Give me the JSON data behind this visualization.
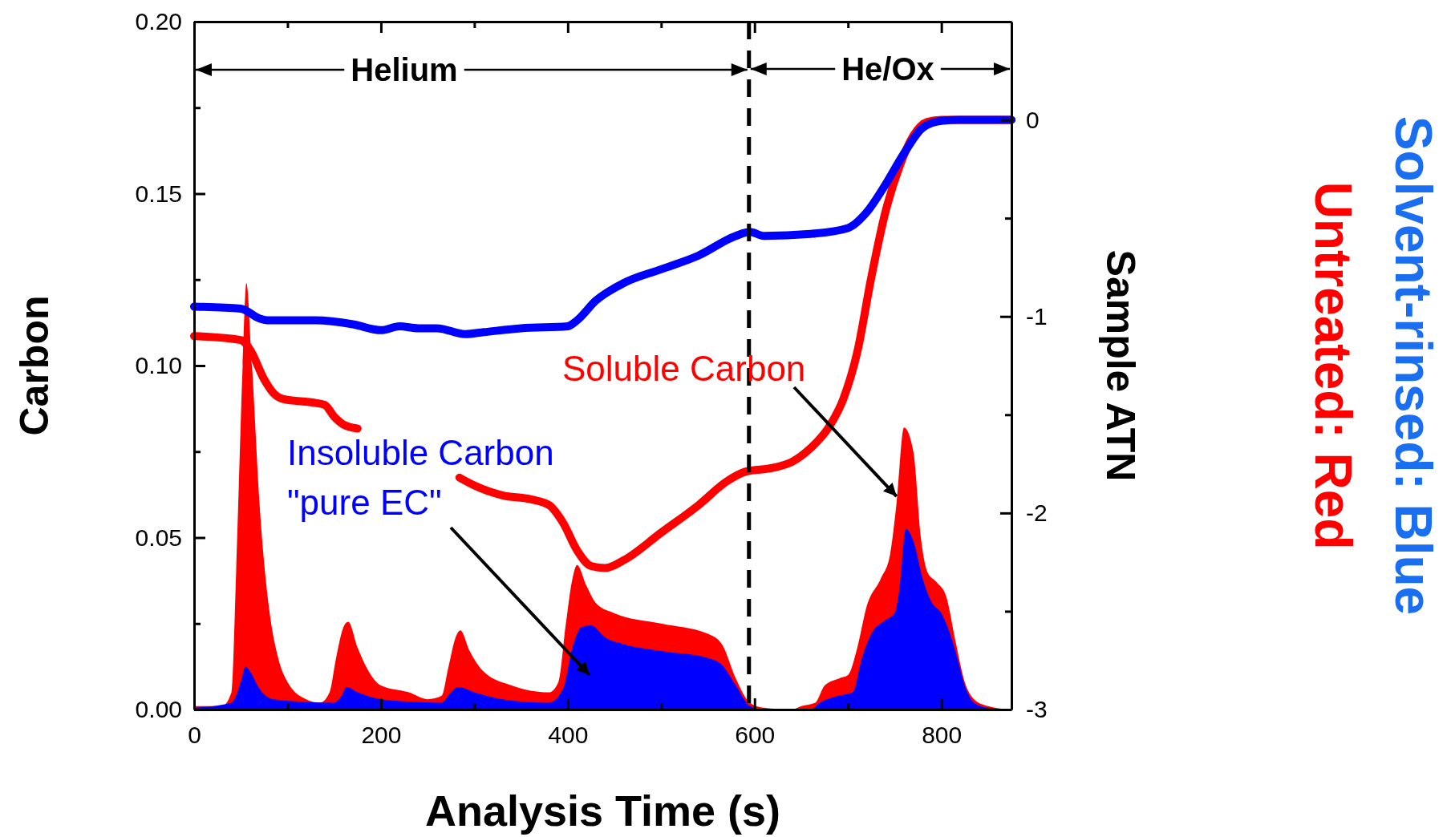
{
  "chart_data": {
    "type": "area",
    "xlabel": "Analysis Time (s)",
    "ylabel": "Carbon",
    "y2label": "Sample ATN",
    "xlim": [
      0,
      875
    ],
    "xticks": [
      0,
      {
        "value": 100,
        "label": null
      },
      200,
      {
        "value": 300,
        "label": null
      },
      400,
      {
        "value": 500,
        "label": null
      },
      600,
      {
        "value": 700,
        "label": null
      },
      800
    ],
    "ylim": [
      0,
      0.2
    ],
    "yticks": [
      {
        "value": 0,
        "label": "0.00"
      },
      {
        "value": 0.025,
        "label": null
      },
      {
        "value": 0.05,
        "label": "0.05"
      },
      {
        "value": 0.075,
        "label": null
      },
      {
        "value": 0.1,
        "label": "0.10"
      },
      {
        "value": 0.125,
        "label": null
      },
      {
        "value": 0.15,
        "label": "0.15"
      },
      {
        "value": 0.175,
        "label": null
      },
      {
        "value": 0.2,
        "label": "0.20"
      }
    ],
    "y2lim": [
      -3,
      0.5
    ],
    "y2ticks": [
      -3,
      {
        "value": -2.5,
        "label": null
      },
      -2,
      {
        "value": -1.5,
        "label": null
      },
      -1,
      {
        "value": -0.5,
        "label": null
      },
      0
    ],
    "ref_lines": [
      {
        "axis": "x",
        "value": 594,
        "line_style": "dashed",
        "color": "#000000"
      }
    ],
    "series": [
      {
        "color": "#ff0000",
        "x": [
          0,
          30,
          40,
          45,
          52,
          56,
          62,
          70,
          80,
          90,
          100,
          120,
          135,
          145,
          152,
          160,
          165,
          175,
          185,
          200,
          230,
          250,
          265,
          272,
          280,
          285,
          295,
          310,
          340,
          380,
          390,
          398,
          405,
          410,
          420,
          430,
          450,
          500,
          550,
          565,
          580,
          595,
          610,
          640,
          650,
          665,
          675,
          690,
          700,
          710,
          720,
          735,
          745,
          752,
          760,
          770,
          778,
          785,
          795,
          805,
          815,
          825,
          835,
          850,
          875
        ],
        "values": [
          0.001,
          0.001,
          0.005,
          0.04,
          0.1,
          0.124,
          0.1,
          0.06,
          0.03,
          0.015,
          0.008,
          0.003,
          0.002,
          0.005,
          0.015,
          0.024,
          0.0255,
          0.018,
          0.012,
          0.007,
          0.005,
          0.003,
          0.004,
          0.012,
          0.021,
          0.023,
          0.017,
          0.011,
          0.007,
          0.005,
          0.008,
          0.025,
          0.038,
          0.042,
          0.036,
          0.031,
          0.028,
          0.025,
          0.022,
          0.019,
          0.009,
          0.002,
          0.0005,
          0,
          0.001,
          0.002,
          0.007,
          0.009,
          0.01,
          0.018,
          0.03,
          0.038,
          0.045,
          0.06,
          0.082,
          0.075,
          0.05,
          0.04,
          0.037,
          0.033,
          0.02,
          0.008,
          0.003,
          0.001,
          0
        ]
      },
      {
        "color": "#0000ff",
        "x": [
          0,
          40,
          50,
          55,
          60,
          70,
          85,
          150,
          158,
          163,
          175,
          200,
          265,
          275,
          283,
          300,
          330,
          380,
          395,
          405,
          415,
          425,
          440,
          460,
          500,
          550,
          565,
          580,
          595,
          610,
          660,
          670,
          690,
          705,
          715,
          725,
          740,
          750,
          755,
          762,
          770,
          780,
          790,
          800,
          808,
          815,
          825,
          835,
          850,
          875
        ],
        "values": [
          0.0005,
          0.002,
          0.008,
          0.0125,
          0.011,
          0.006,
          0.003,
          0.002,
          0.004,
          0.0065,
          0.005,
          0.003,
          0.002,
          0.005,
          0.0065,
          0.005,
          0.003,
          0.002,
          0.006,
          0.018,
          0.024,
          0.0245,
          0.021,
          0.019,
          0.017,
          0.015,
          0.013,
          0.007,
          0.001,
          0,
          0,
          0.002,
          0.004,
          0.005,
          0.015,
          0.022,
          0.026,
          0.028,
          0.035,
          0.0525,
          0.049,
          0.038,
          0.031,
          0.028,
          0.023,
          0.017,
          0.007,
          0.002,
          0.0005,
          0
        ]
      },
      {
        "type": "line",
        "axis": "y2",
        "color": "#ff0000",
        "x": [
          0,
          50,
          60,
          75,
          85,
          95,
          130,
          140,
          150,
          160,
          175,
          185,
          284,
          300,
          330,
          360,
          380,
          395,
          410,
          425,
          440,
          460,
          500,
          540,
          570,
          590,
          620,
          640,
          660,
          680,
          695,
          710,
          725,
          740,
          755,
          770,
          785,
          800,
          875
        ],
        "values": [
          -1.1,
          -1.12,
          -1.17,
          -1.32,
          -1.39,
          -1.42,
          -1.44,
          -1.45,
          -1.51,
          -1.55,
          -1.57,
          null,
          -1.82,
          -1.86,
          -1.91,
          -1.93,
          -1.96,
          -2.05,
          -2.19,
          -2.27,
          -2.28,
          -2.24,
          -2.1,
          -1.96,
          -1.84,
          -1.79,
          -1.77,
          -1.74,
          -1.67,
          -1.56,
          -1.42,
          -1.18,
          -0.8,
          -0.47,
          -0.24,
          -0.08,
          -0.01,
          0,
          0
        ]
      },
      {
        "type": "line",
        "axis": "y2",
        "color": "#0000ff",
        "x": [
          0,
          50,
          70,
          80,
          130,
          170,
          200,
          220,
          240,
          260,
          290,
          310,
          350,
          400,
          410,
          430,
          460,
          500,
          540,
          580,
          595,
          610,
          660,
          700,
          720,
          740,
          760,
          780,
          800,
          820,
          875
        ],
        "values": [
          -0.95,
          -0.96,
          -1.01,
          -1.02,
          -1.02,
          -1.04,
          -1.07,
          -1.05,
          -1.06,
          -1.06,
          -1.09,
          -1.08,
          -1.06,
          -1.05,
          -1.02,
          -0.92,
          -0.83,
          -0.76,
          -0.69,
          -0.59,
          -0.57,
          -0.59,
          -0.58,
          -0.55,
          -0.47,
          -0.33,
          -0.17,
          -0.04,
          -0.005,
          0,
          0
        ]
      }
    ],
    "annotations": [
      {
        "text": "Helium",
        "x": 594,
        "y": 0.186
      },
      "He/Ox",
      {
        "text": "Soluble Carbon",
        "x": 752,
        "y": 0.062
      },
      "Insoluble Carbon\n\"pure EC\"",
      "Untreated: Red",
      "Solvent-rinsed: Blue"
    ]
  }
}
